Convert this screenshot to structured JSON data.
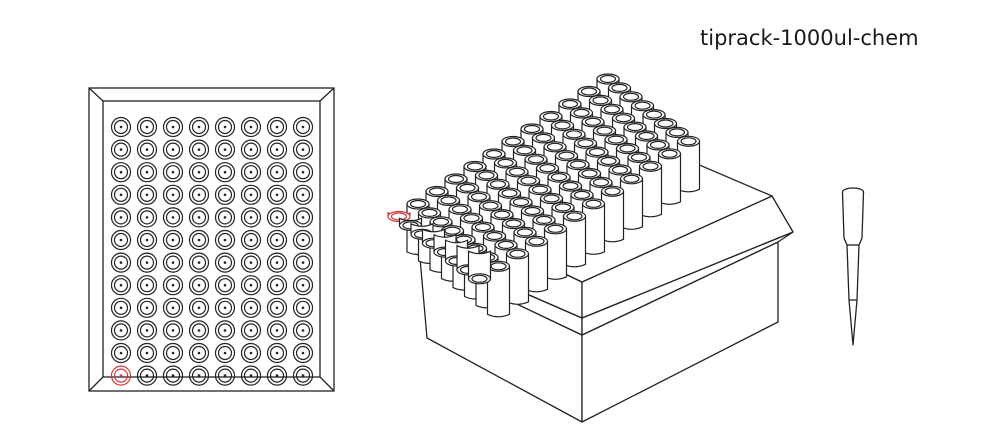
{
  "labware": {
    "name": "tiprack-1000ul-chem"
  },
  "colors": {
    "stroke": "#222222",
    "highlight": "#d23a3a",
    "background": "#ffffff"
  },
  "grid": {
    "rows": 12,
    "cols": 8
  },
  "highlighted_well": "bottom-left"
}
